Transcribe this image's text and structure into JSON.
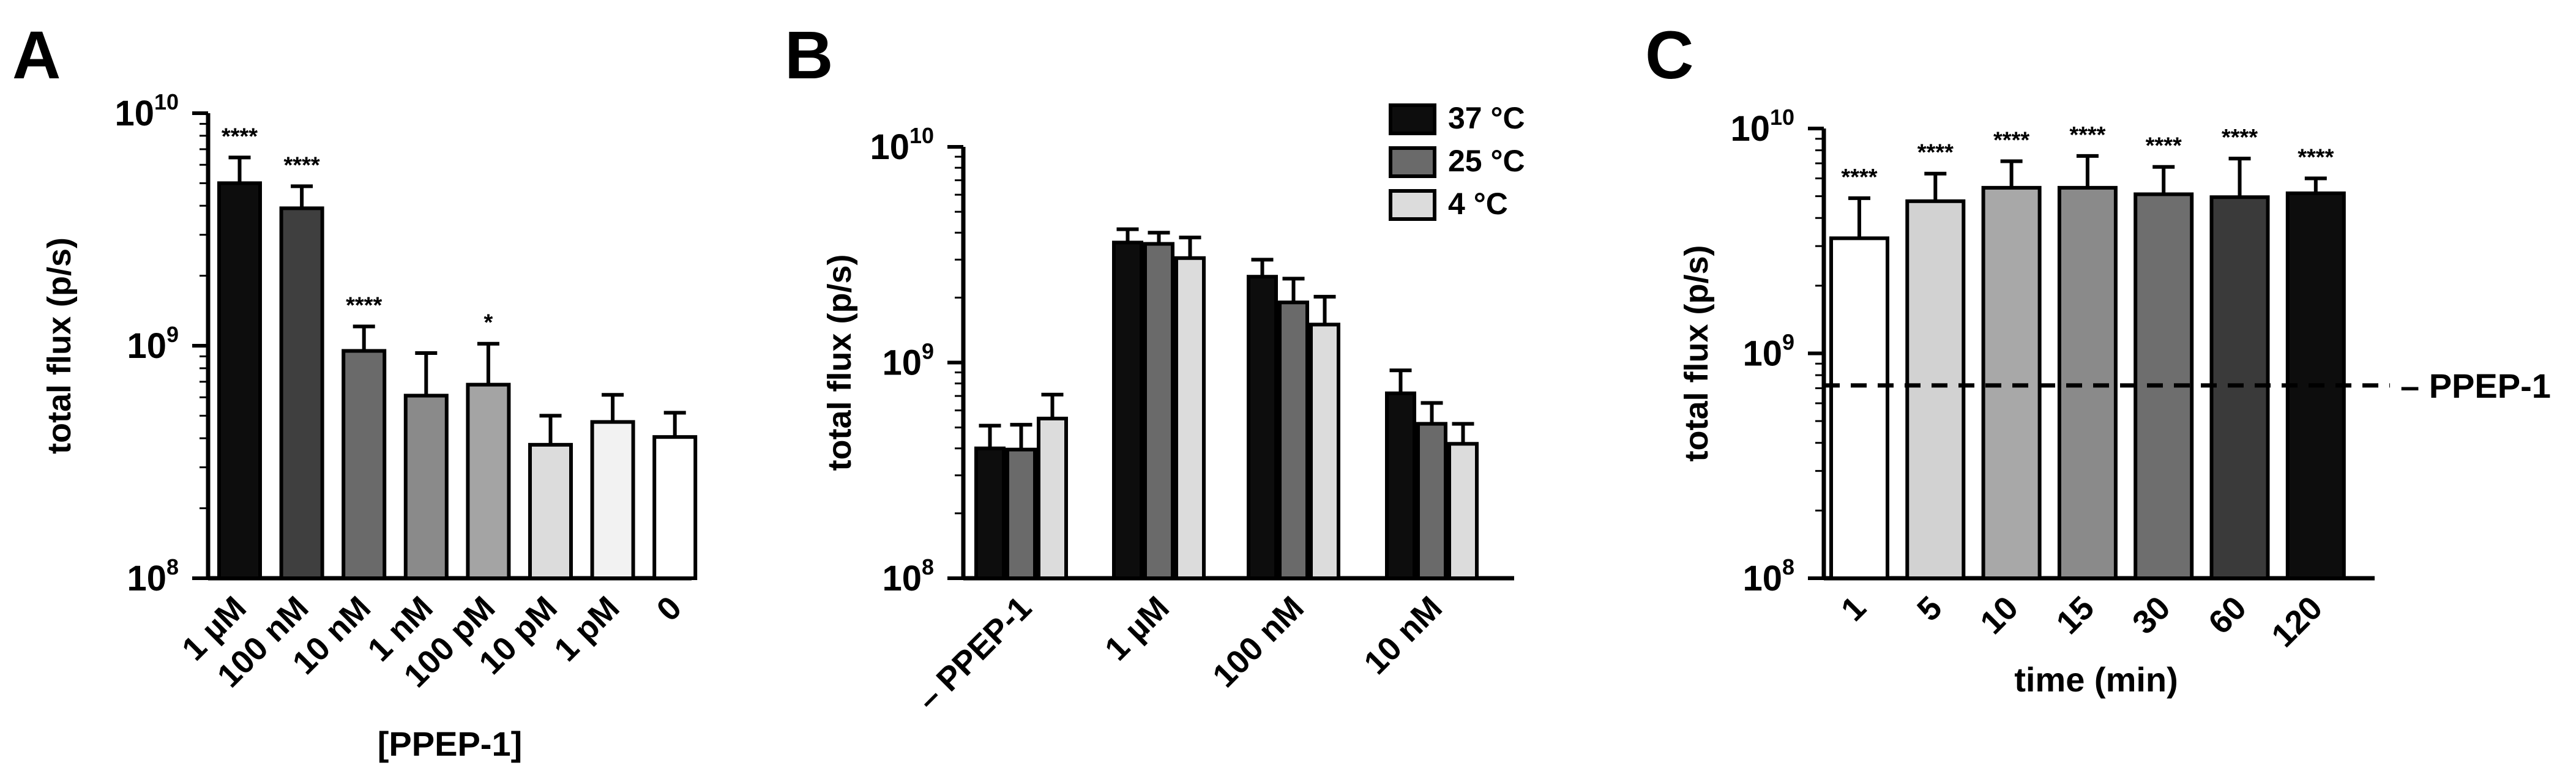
{
  "chart_data": [
    {
      "panel": "A",
      "type": "bar",
      "scale": "log",
      "ylabel": "total flux (p/s)",
      "xlabel": "[PPEP-1]",
      "yticks": [
        {
          "base": "10",
          "exp": "8"
        },
        {
          "base": "10",
          "exp": "9"
        },
        {
          "base": "10",
          "exp": "10"
        }
      ],
      "ylim": [
        100000000,
        10000000000
      ],
      "categories": [
        "1 µM",
        "100 nM",
        "10 nM",
        "1 nM",
        "100 pM",
        "10 pM",
        "1 pM",
        "0"
      ],
      "values": [
        5000000000,
        3900000000,
        950000000,
        610000000,
        680000000,
        375000000,
        470000000,
        405000000
      ],
      "errors": [
        1450000000,
        950000000,
        260000000,
        320000000,
        340000000,
        125000000,
        145000000,
        110000000
      ],
      "significance": [
        "****",
        "****",
        "****",
        "",
        "*",
        "",
        "",
        ""
      ],
      "colors": [
        "#0d0d0d",
        "#3f3f3f",
        "#6a6a6a",
        "#8a8a8a",
        "#a4a4a4",
        "#dcdcdc",
        "#f2f2f2",
        "#ffffff"
      ]
    },
    {
      "panel": "B",
      "type": "bar",
      "scale": "log",
      "ylabel": "total flux (p/s)",
      "yticks": [
        {
          "base": "10",
          "exp": "8"
        },
        {
          "base": "10",
          "exp": "9"
        },
        {
          "base": "10",
          "exp": "10"
        }
      ],
      "ylim": [
        100000000,
        10000000000
      ],
      "categories": [
        "– PPEP-1",
        "1 µM",
        "100 nM",
        "10 nM"
      ],
      "legend_position": "top-right",
      "series": [
        {
          "name": "37 °C",
          "color": "#0d0d0d",
          "values": [
            400000000,
            3600000000,
            2500000000,
            720000000
          ],
          "errors": [
            110000000,
            550000000,
            500000000,
            200000000
          ]
        },
        {
          "name": "25 °C",
          "color": "#6a6a6a",
          "values": [
            395000000,
            3550000000,
            1900000000,
            520000000
          ],
          "errors": [
            120000000,
            450000000,
            550000000,
            130000000
          ]
        },
        {
          "name": "4 °C",
          "color": "#dcdcdc",
          "values": [
            550000000,
            3050000000,
            1500000000,
            420000000
          ],
          "errors": [
            160000000,
            750000000,
            520000000,
            100000000
          ]
        }
      ]
    },
    {
      "panel": "C",
      "type": "bar",
      "scale": "log",
      "ylabel": "total flux (p/s)",
      "xlabel": "time (min)",
      "yticks": [
        {
          "base": "10",
          "exp": "8"
        },
        {
          "base": "10",
          "exp": "9"
        },
        {
          "base": "10",
          "exp": "10"
        }
      ],
      "ylim": [
        100000000,
        10000000000
      ],
      "categories": [
        "1",
        "5",
        "10",
        "15",
        "30",
        "60",
        "120"
      ],
      "values": [
        3250000000,
        4750000000,
        5450000000,
        5450000000,
        5100000000,
        4950000000,
        5150000000
      ],
      "errors": [
        1650000000,
        1550000000,
        1700000000,
        2100000000,
        1650000000,
        2400000000,
        850000000
      ],
      "significance": [
        "****",
        "****",
        "****",
        "****",
        "****",
        "****",
        "****"
      ],
      "colors": [
        "#ffffff",
        "#d2d2d2",
        "#a8a8a8",
        "#8a8a8a",
        "#6e6e6e",
        "#3a3a3a",
        "#0d0d0d"
      ],
      "reference_line": {
        "label": "– PPEP-1",
        "value": 720000000
      }
    }
  ]
}
